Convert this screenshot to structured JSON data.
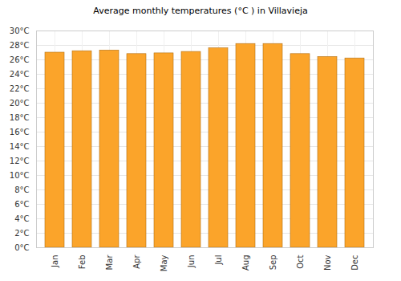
{
  "chart_data": {
    "type": "bar",
    "title": "Average monthly temperatures (°C ) in Villavieja",
    "categories": [
      "Jan",
      "Feb",
      "Mar",
      "Apr",
      "May",
      "Jun",
      "Jul",
      "Aug",
      "Sep",
      "Oct",
      "Nov",
      "Dec"
    ],
    "values": [
      27.0,
      27.2,
      27.3,
      26.8,
      26.9,
      27.1,
      27.6,
      28.2,
      28.2,
      26.8,
      26.4,
      26.2
    ],
    "color": "#fba42a",
    "ylim": [
      0,
      30
    ],
    "yticks": [
      {
        "value": 0,
        "label": "0°C"
      },
      {
        "value": 2,
        "label": "2°C"
      },
      {
        "value": 4,
        "label": "4°C"
      },
      {
        "value": 6,
        "label": "6°C"
      },
      {
        "value": 8,
        "label": "8°C"
      },
      {
        "value": 10,
        "label": "10°C"
      },
      {
        "value": 12,
        "label": "12°C"
      },
      {
        "value": 14,
        "label": "14°C"
      },
      {
        "value": 16,
        "label": "16°C"
      },
      {
        "value": 18,
        "label": "18°C"
      },
      {
        "value": 20,
        "label": "20°C"
      },
      {
        "value": 22,
        "label": "22°C"
      },
      {
        "value": 24,
        "label": "24°C"
      },
      {
        "value": 26,
        "label": "26°C"
      },
      {
        "value": 28,
        "label": "28°C"
      },
      {
        "value": 30,
        "label": "30°C"
      }
    ],
    "grid": true
  }
}
